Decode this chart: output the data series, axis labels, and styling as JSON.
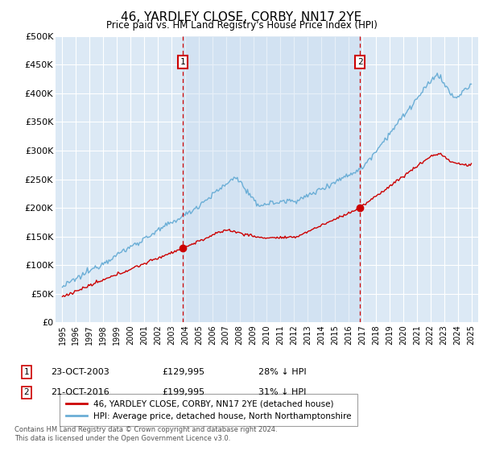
{
  "title": "46, YARDLEY CLOSE, CORBY, NN17 2YE",
  "subtitle": "Price paid vs. HM Land Registry's House Price Index (HPI)",
  "ylabel_ticks": [
    "£0",
    "£50K",
    "£100K",
    "£150K",
    "£200K",
    "£250K",
    "£300K",
    "£350K",
    "£400K",
    "£450K",
    "£500K"
  ],
  "ytick_values": [
    0,
    50000,
    100000,
    150000,
    200000,
    250000,
    300000,
    350000,
    400000,
    450000,
    500000
  ],
  "ylim": [
    0,
    500000
  ],
  "plot_bg_color": "#dce9f5",
  "shade_color": "#c5d9ee",
  "grid_color": "#ffffff",
  "hpi_color": "#6baed6",
  "price_color": "#cc0000",
  "marker1_x": 2003.833,
  "marker2_x": 2016.833,
  "marker1_price": 129995,
  "marker2_price": 199995,
  "legend_entry1": "46, YARDLEY CLOSE, CORBY, NN17 2YE (detached house)",
  "legend_entry2": "HPI: Average price, detached house, North Northamptonshire",
  "footnote": "Contains HM Land Registry data © Crown copyright and database right 2024.\nThis data is licensed under the Open Government Licence v3.0.",
  "title_fontsize": 11,
  "subtitle_fontsize": 9
}
